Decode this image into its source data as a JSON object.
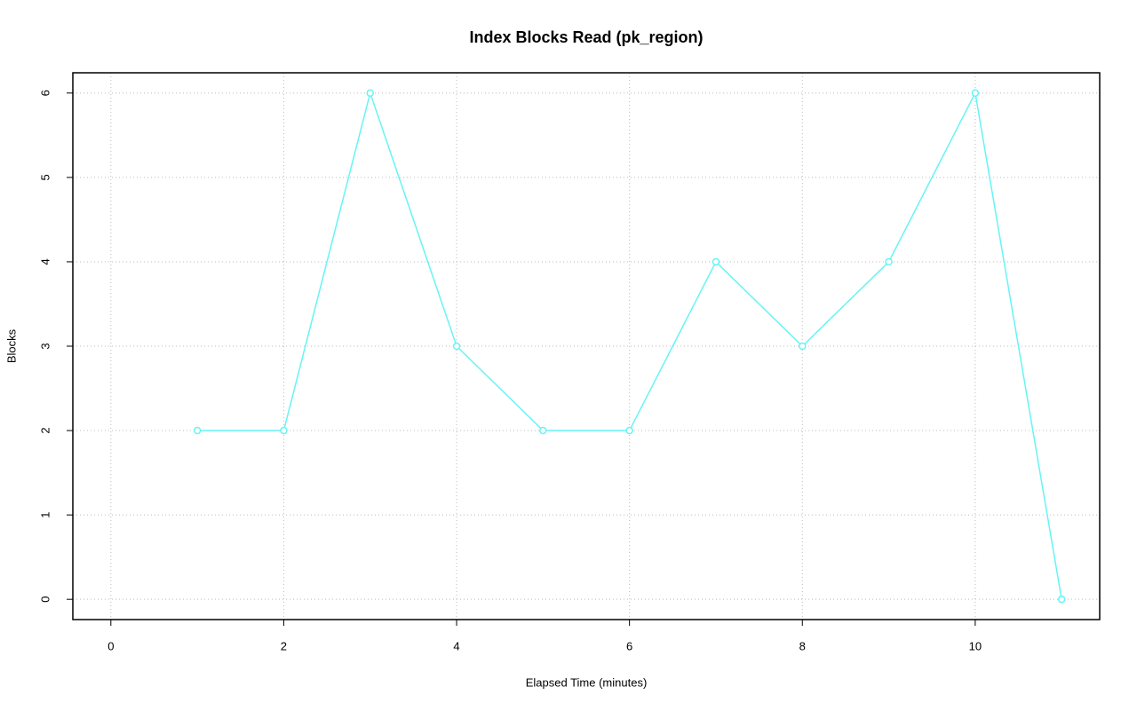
{
  "chart_data": {
    "type": "line",
    "title": "Index Blocks Read (pk_region)",
    "x_label": "Elapsed Time (minutes)",
    "y_label": "Blocks",
    "x": [
      1,
      2,
      3,
      4,
      5,
      6,
      7,
      8,
      9,
      10,
      11
    ],
    "series": [
      {
        "color": "#66f4f4",
        "values": [
          2,
          2,
          6,
          3,
          2,
          2,
          4,
          3,
          4,
          6,
          0
        ]
      }
    ],
    "xlim": [
      -0.44,
      11.44
    ],
    "ylim": [
      -0.24,
      6.24
    ],
    "xticks": [
      0,
      2,
      4,
      6,
      8,
      10
    ],
    "yticks": [
      0,
      1,
      2,
      3,
      4,
      5,
      6
    ],
    "grid": true
  }
}
